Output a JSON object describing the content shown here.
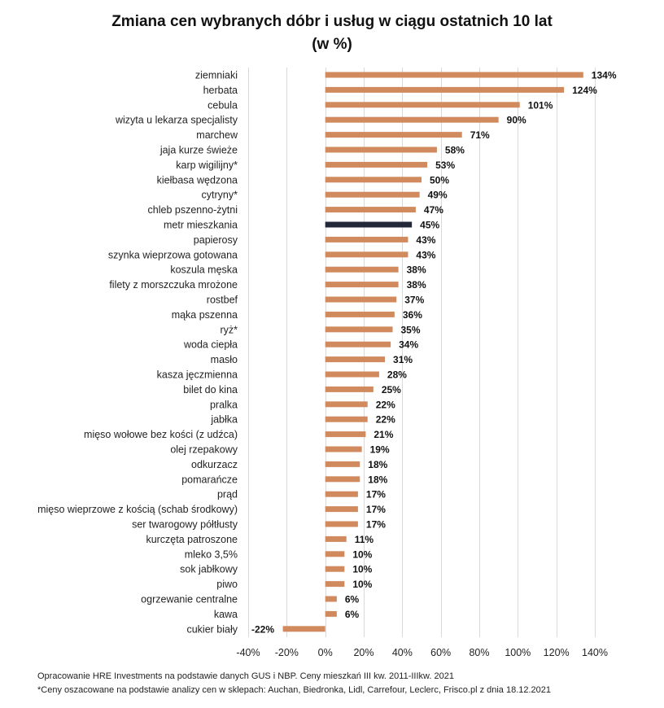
{
  "chart_data": {
    "type": "bar",
    "orientation": "horizontal",
    "title": "Zmiana cen wybranych dóbr i usług w ciągu ostatnich 10 lat",
    "subtitle": "(w %)",
    "xlabel": "",
    "ylabel": "",
    "xlim": [
      -40,
      140
    ],
    "xticks": [
      -40,
      -20,
      0,
      20,
      40,
      60,
      80,
      100,
      120,
      140
    ],
    "xtick_labels": [
      "-40%",
      "-20%",
      "0%",
      "20%",
      "40%",
      "60%",
      "80%",
      "100%",
      "120%",
      "140%"
    ],
    "grid": "vertical",
    "colors": {
      "default": "#D08A5E",
      "highlight": "#232838",
      "grid": "#d9d9d9"
    },
    "highlight_category": "metr mieszkania",
    "categories": [
      "ziemniaki",
      "herbata",
      "cebula",
      "wizyta u lekarza specjalisty",
      "marchew",
      "jaja kurze świeże",
      "karp wigilijny*",
      "kiełbasa wędzona",
      "cytryny*",
      "chleb pszenno-żytni",
      "metr mieszkania",
      "papierosy",
      "szynka wieprzowa gotowana",
      "koszula męska",
      "filety z morszczuka mrożone",
      "rostbef",
      "mąka pszenna",
      "ryż*",
      "woda ciepła",
      "masło",
      "kasza jęczmienna",
      "bilet do kina",
      "pralka",
      "jabłka",
      "mięso wołowe bez kości (z udźca)",
      "olej rzepakowy",
      "odkurzacz",
      "pomarańcze",
      "prąd",
      "mięso wieprzowe z kością (schab środkowy)",
      "ser twarogowy półtłusty",
      "kurczęta patroszone",
      "mleko 3,5%",
      "sok jabłkowy",
      "piwo",
      "ogrzewanie centralne",
      "kawa",
      "cukier biały"
    ],
    "values": [
      134,
      124,
      101,
      90,
      71,
      58,
      53,
      50,
      49,
      47,
      45,
      43,
      43,
      38,
      38,
      37,
      36,
      35,
      34,
      31,
      28,
      25,
      22,
      22,
      21,
      19,
      18,
      18,
      17,
      17,
      17,
      11,
      10,
      10,
      10,
      6,
      6,
      -22
    ],
    "value_labels": [
      "134%",
      "124%",
      "101%",
      "90%",
      "71%",
      "58%",
      "53%",
      "50%",
      "49%",
      "47%",
      "45%",
      "43%",
      "43%",
      "38%",
      "38%",
      "37%",
      "36%",
      "35%",
      "34%",
      "31%",
      "28%",
      "25%",
      "22%",
      "22%",
      "21%",
      "19%",
      "18%",
      "18%",
      "17%",
      "17%",
      "17%",
      "11%",
      "10%",
      "10%",
      "10%",
      "6%",
      "6%",
      "-22%"
    ]
  },
  "footnotes": {
    "source": "Opracowanie HRE Investments na podstawie danych GUS i NBP. Ceny mieszkań III kw. 2011-IIIkw. 2021",
    "asterisk": "*Ceny oszacowane na podstawie analizy cen w sklepach: Auchan, Biedronka, Lidl, Carrefour, Leclerc, Frisco.pl z dnia 18.12.2021"
  }
}
